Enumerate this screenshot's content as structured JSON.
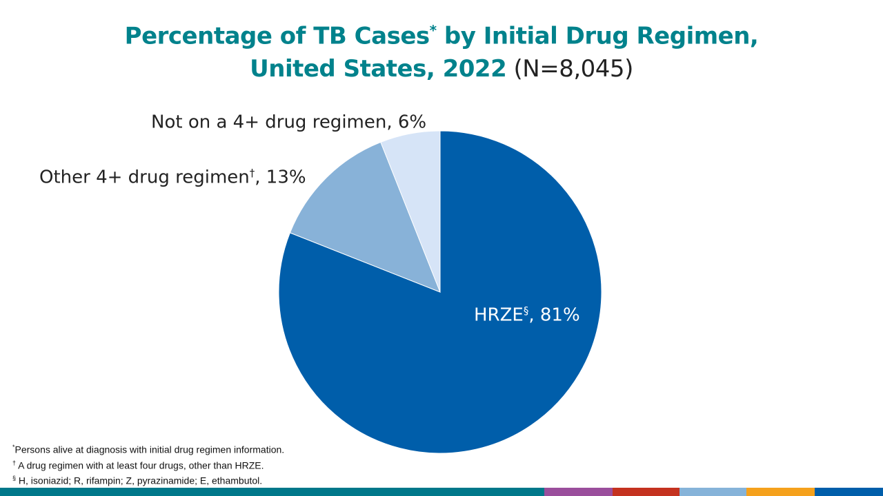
{
  "chart_data": {
    "type": "pie",
    "title_line1": "Percentage of TB Cases",
    "title_mark": "*",
    "title_line1b": " by Initial Drug Regimen,",
    "title_line2": "United States, 2022",
    "title_n": " (N=8,045)",
    "slices": [
      {
        "name": "HRZE",
        "mark": "§",
        "value": 81,
        "label_suffix": ", 81%",
        "color": "#005eaa"
      },
      {
        "name": "Other 4+ drug regimen",
        "mark": "†",
        "value": 13,
        "label_suffix": ", 13%",
        "color": "#88b2d8"
      },
      {
        "name": "Not on a 4+ drug regimen",
        "mark": "",
        "value": 6,
        "label_suffix": ", 6%",
        "color": "#d6e4f7"
      }
    ],
    "start_angle": "12 o'clock",
    "direction": "clockwise"
  },
  "footnotes": [
    {
      "mark": "*",
      "text": "Persons alive at diagnosis with initial drug regimen information."
    },
    {
      "mark": "†",
      "text": " A drug regimen with at least four drugs, other than HRZE."
    },
    {
      "mark": "§",
      "text": " H, isoniazid; R, rifampin; Z, pyrazinamide; E, ethambutol."
    }
  ],
  "footer_colors": [
    "#00788a",
    "#9a4e9c",
    "#c4321f",
    "#86b3d9",
    "#f5a11c",
    "#005eaa"
  ]
}
